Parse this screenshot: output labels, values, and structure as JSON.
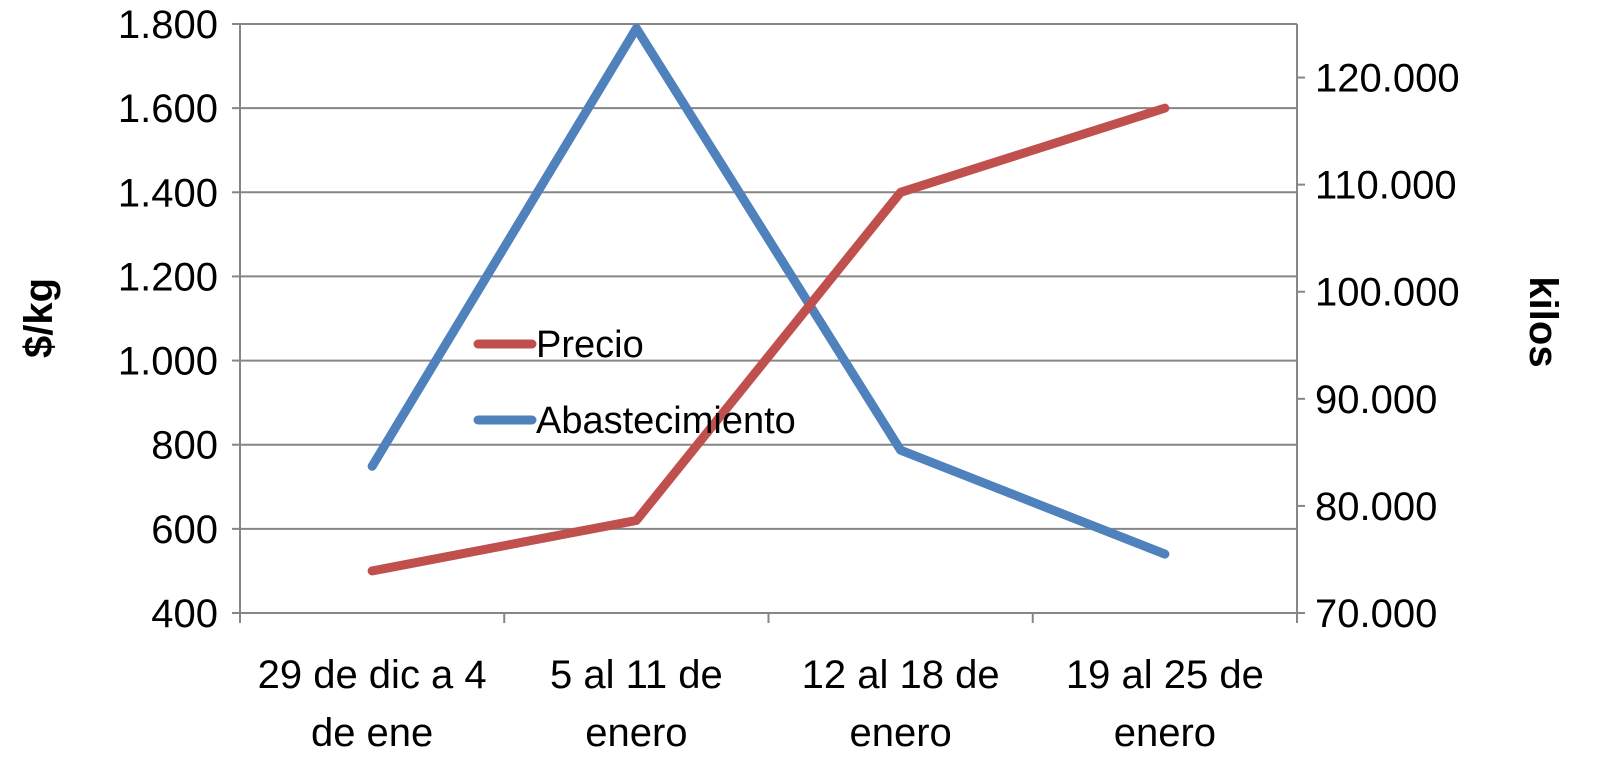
{
  "chart_data": {
    "type": "line",
    "categories": [
      [
        "29 de dic a 4",
        "de ene"
      ],
      [
        "5 al 11 de",
        "enero"
      ],
      [
        "12 al 18 de",
        "enero"
      ],
      [
        "19 al 25 de",
        "enero"
      ]
    ],
    "ylabel": "$/kg",
    "y2label": "kilos",
    "y_axis": {
      "min": 400,
      "max": 1800,
      "step": 200,
      "tick_labels": [
        "400",
        "600",
        "800",
        "1.000",
        "1.200",
        "1.400",
        "1.600",
        "1.800"
      ]
    },
    "y2_axis": {
      "min": 70000,
      "max": 125000,
      "ticks": [
        70000,
        80000,
        90000,
        100000,
        110000,
        120000
      ],
      "tick_labels": [
        "70.000",
        "80.000",
        "90.000",
        "100.000",
        "110.000",
        "120.000"
      ]
    },
    "series": [
      {
        "name": "Precio",
        "axis": "left",
        "color": "#C0504D",
        "values": [
          500,
          620,
          1400,
          1600
        ]
      },
      {
        "name": "Abastecimiento",
        "axis": "right",
        "color": "#4F81BD",
        "values": [
          83700,
          124600,
          85200,
          75500
        ]
      }
    ],
    "grid": true,
    "legend_position": "center-left inside plot"
  }
}
